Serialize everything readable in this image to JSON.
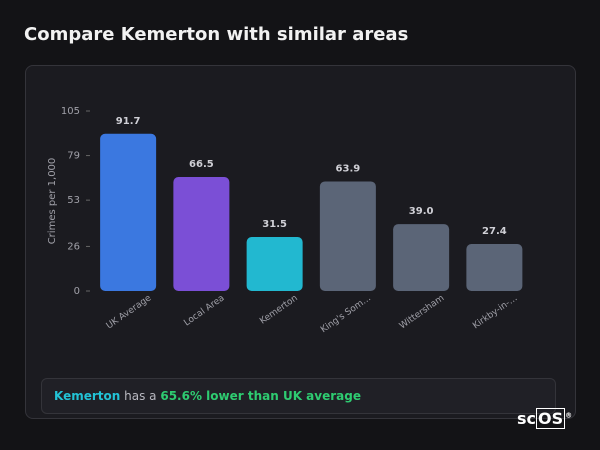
{
  "header": {
    "title": "Compare Kemerton with similar areas"
  },
  "chart_data": {
    "type": "bar",
    "y_label": "Crimes per 1,000",
    "categories": [
      "UK Average",
      "Local Area",
      "Kemerton",
      "King's Som…",
      "Wittersham",
      "Kirkby-in-…"
    ],
    "values": [
      91.7,
      66.5,
      31.5,
      63.9,
      39.0,
      27.4
    ],
    "value_labels": [
      "91.7",
      "66.5",
      "31.5",
      "63.9",
      "39.0",
      "27.4"
    ],
    "colors": [
      "#3b78e0",
      "#7b4fd6",
      "#22b8d0",
      "#5b6577",
      "#5b6577",
      "#5b6577"
    ],
    "ylim": [
      0,
      105
    ],
    "yticks": [
      0,
      26,
      53,
      79,
      105
    ]
  },
  "note": {
    "area": "Kemerton",
    "text": "has a",
    "highlight": "65.6% lower than UK average"
  },
  "logo": {
    "prefix": "sc",
    "suffix": "OS",
    "mark": "®"
  }
}
